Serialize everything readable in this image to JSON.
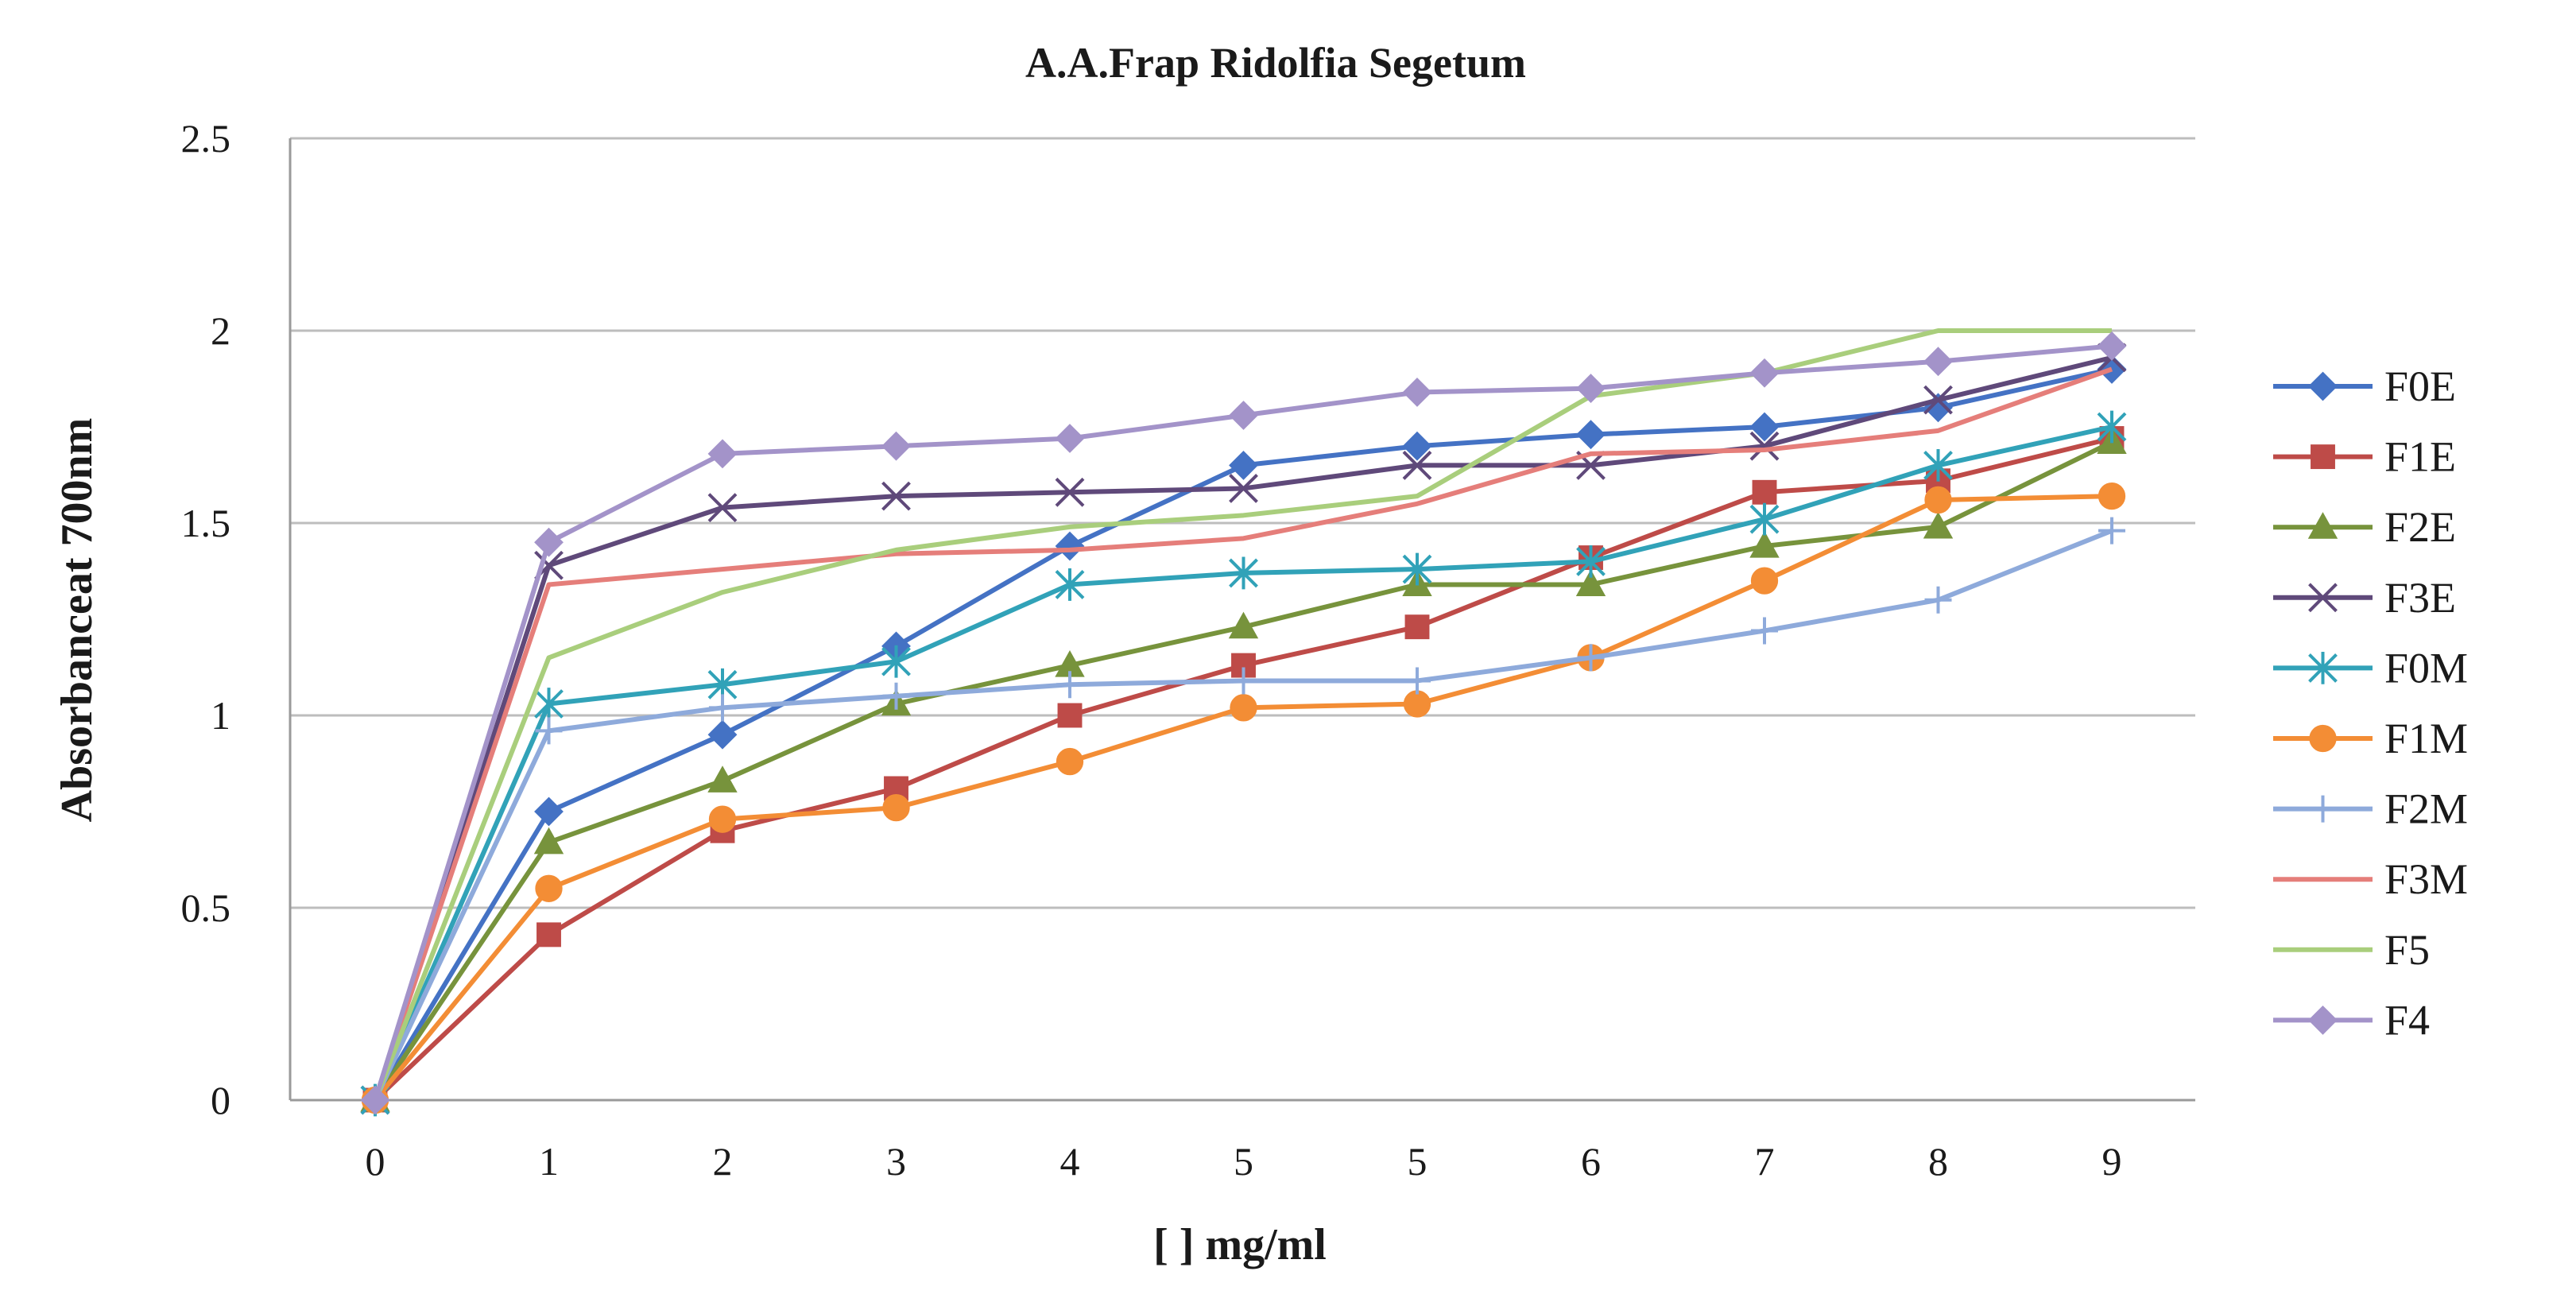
{
  "chart_data": {
    "type": "line",
    "title": "A.A.Frap Ridolfia Segetum",
    "xlabel": "[ ]  mg/ml",
    "ylabel": "Absorbanceat  700nm",
    "categories": [
      "0",
      "1",
      "2",
      "3",
      "4",
      "5",
      "5",
      "6",
      "7",
      "8",
      "9"
    ],
    "ylim": [
      0,
      2.5
    ],
    "yticks": [
      "0",
      "0.5",
      "1",
      "1.5",
      "2",
      "2.5"
    ],
    "ytick_values": [
      0,
      0.5,
      1,
      1.5,
      2,
      2.5
    ],
    "grid": true,
    "legend_position": "right",
    "series": [
      {
        "name": "F0E",
        "color": "#4472C4",
        "marker": "diamond",
        "values": [
          0,
          0.75,
          0.95,
          1.18,
          1.44,
          1.65,
          1.7,
          1.73,
          1.75,
          1.8,
          1.9
        ]
      },
      {
        "name": "F1E",
        "color": "#BE4B48",
        "marker": "square",
        "values": [
          0,
          0.43,
          0.7,
          0.81,
          1.0,
          1.13,
          1.23,
          1.41,
          1.58,
          1.61,
          1.72
        ]
      },
      {
        "name": "F2E",
        "color": "#77933C",
        "marker": "triangle",
        "values": [
          0,
          0.67,
          0.83,
          1.03,
          1.13,
          1.23,
          1.34,
          1.34,
          1.44,
          1.49,
          1.71
        ]
      },
      {
        "name": "F3E",
        "color": "#5F497A",
        "marker": "x",
        "values": [
          0,
          1.39,
          1.54,
          1.57,
          1.58,
          1.59,
          1.65,
          1.65,
          1.7,
          1.82,
          1.93
        ]
      },
      {
        "name": "F0M",
        "color": "#31A2B8",
        "marker": "star",
        "values": [
          0,
          1.03,
          1.08,
          1.14,
          1.34,
          1.37,
          1.38,
          1.4,
          1.51,
          1.65,
          1.75
        ]
      },
      {
        "name": "F1M",
        "color": "#F38D35",
        "marker": "circle",
        "values": [
          0,
          0.55,
          0.73,
          0.76,
          0.88,
          1.02,
          1.03,
          1.15,
          1.35,
          1.56,
          1.57
        ]
      },
      {
        "name": "F2M",
        "color": "#8EAADB",
        "marker": "plus",
        "values": [
          0,
          0.96,
          1.02,
          1.05,
          1.08,
          1.09,
          1.09,
          1.15,
          1.22,
          1.3,
          1.48
        ]
      },
      {
        "name": "F3M",
        "color": "#E57E7A",
        "marker": "none",
        "values": [
          0,
          1.34,
          1.38,
          1.42,
          1.43,
          1.46,
          1.55,
          1.68,
          1.69,
          1.74,
          1.9
        ]
      },
      {
        "name": "F5",
        "color": "#A9CE7C",
        "marker": "none",
        "values": [
          0,
          1.15,
          1.32,
          1.43,
          1.49,
          1.52,
          1.57,
          1.83,
          1.89,
          2.0,
          2.0
        ]
      },
      {
        "name": "F4",
        "color": "#A393C9",
        "marker": "diamond",
        "values": [
          0,
          1.45,
          1.68,
          1.7,
          1.72,
          1.78,
          1.84,
          1.85,
          1.89,
          1.92,
          1.96
        ]
      }
    ]
  }
}
